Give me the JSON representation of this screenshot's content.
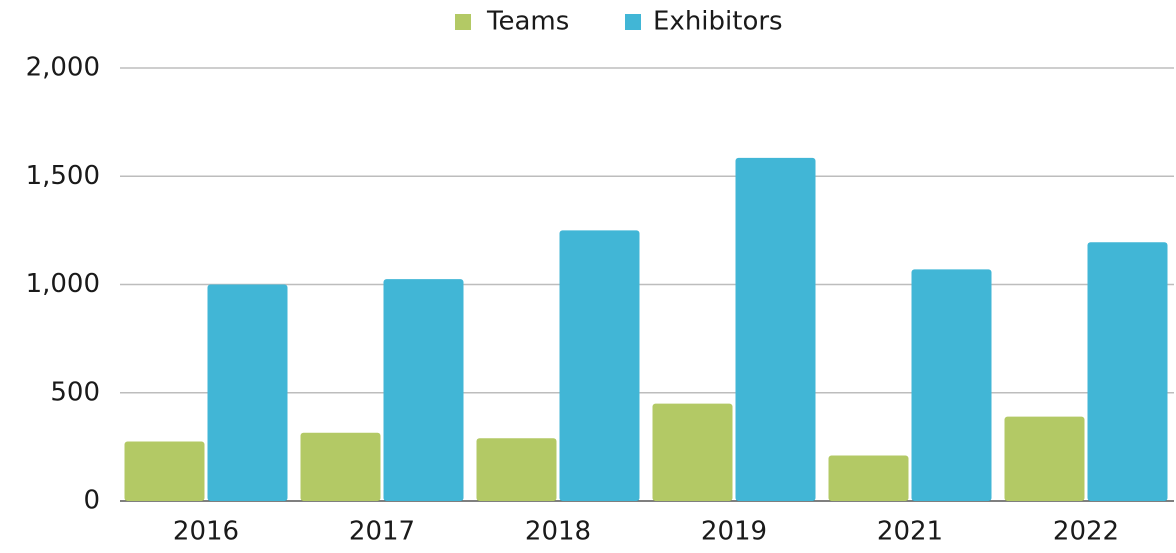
{
  "chart_data": {
    "type": "bar",
    "categories": [
      "2016",
      "2017",
      "2018",
      "2019",
      "2021",
      "2022"
    ],
    "series": [
      {
        "name": "Teams",
        "color": "#b3c965",
        "values": [
          275,
          315,
          290,
          450,
          210,
          390
        ]
      },
      {
        "name": "Exhibitors",
        "color": "#41b6d6",
        "values": [
          1000,
          1025,
          1250,
          1585,
          1070,
          1195
        ]
      }
    ],
    "ylim": [
      0,
      2000
    ],
    "yticks": [
      0,
      500,
      {
        "value": 1000,
        "label": "1,000"
      },
      {
        "value": 1500,
        "label": "1,500"
      },
      {
        "value": 2000,
        "label": "2,000"
      }
    ],
    "grid": true,
    "legend": "top"
  }
}
